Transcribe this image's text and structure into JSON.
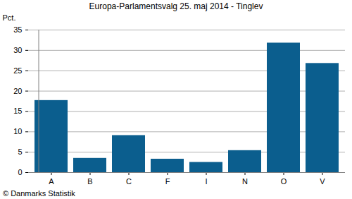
{
  "chart_data": {
    "type": "bar",
    "title": "Europa-Parlamentsvalg 25. maj 2014 - Tinglev",
    "y_label": "Pct.",
    "caption": "© Danmarks Statistik",
    "categories": [
      "A",
      "B",
      "C",
      "F",
      "I",
      "N",
      "O",
      "V"
    ],
    "values": [
      17.7,
      3.5,
      9.1,
      3.3,
      2.5,
      5.4,
      31.8,
      26.8
    ],
    "color": "#0b5e8e",
    "ylim": [
      0,
      35
    ],
    "yticks": [
      0,
      5,
      10,
      15,
      20,
      25,
      30,
      35
    ],
    "grid": true
  }
}
